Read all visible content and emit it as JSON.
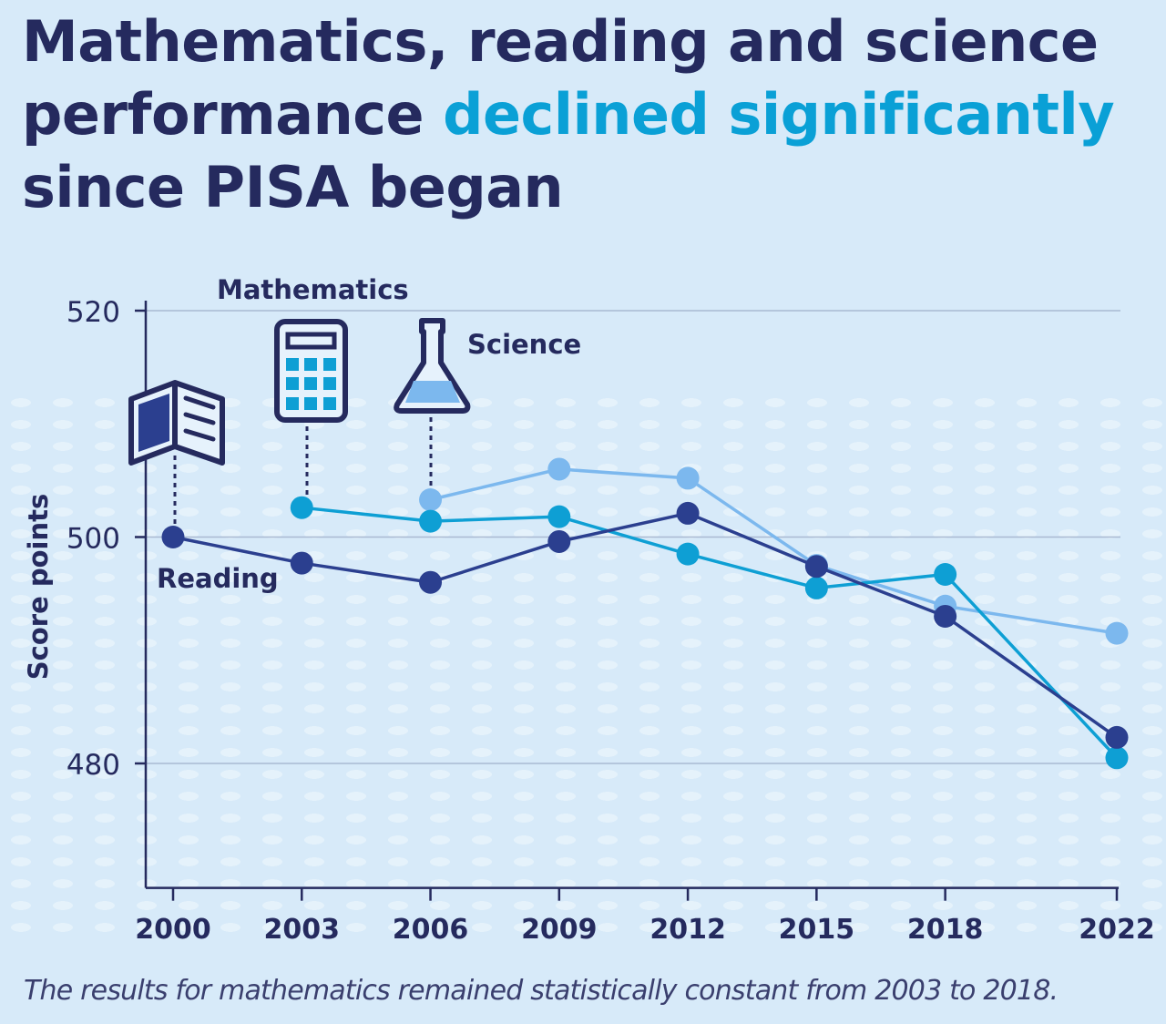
{
  "title": {
    "part1": "Mathematics, reading and science performance ",
    "highlight": "declined significantly",
    "part2": " since PISA began"
  },
  "footnote": "The results for mathematics remained statistically constant from 2003 to 2018.",
  "colors": {
    "text": "#252a5e",
    "highlight": "#0aa0d6",
    "background": "#d7eaf9"
  },
  "chart_data": {
    "type": "line",
    "ylabel": "Score points",
    "xlabel": "",
    "x": [
      2000,
      2003,
      2006,
      2009,
      2012,
      2015,
      2018,
      2022
    ],
    "xtick_labels": [
      "2000",
      "2003",
      "2006",
      "2009",
      "2012",
      "2015",
      "2018",
      "2022"
    ],
    "yticks": [
      480,
      500,
      520
    ],
    "ylim": [
      469,
      520
    ],
    "grid": "horizontal",
    "series": [
      {
        "name": "Reading",
        "color": "#2b3f8f",
        "icon": "open-book-icon",
        "values": [
          500,
          497.7,
          496,
          499.6,
          502.1,
          497.4,
          493,
          482.3
        ]
      },
      {
        "name": "Mathematics",
        "color": "#0e9fd4",
        "icon": "calculator-icon",
        "values": [
          null,
          502.6,
          501.4,
          501.8,
          498.5,
          495.5,
          496.7,
          480.5
        ]
      },
      {
        "name": "Science",
        "color": "#7cb8ee",
        "icon": "flask-icon",
        "values": [
          null,
          null,
          503.3,
          506.0,
          505.2,
          497.5,
          493.9,
          491.5
        ]
      }
    ]
  }
}
